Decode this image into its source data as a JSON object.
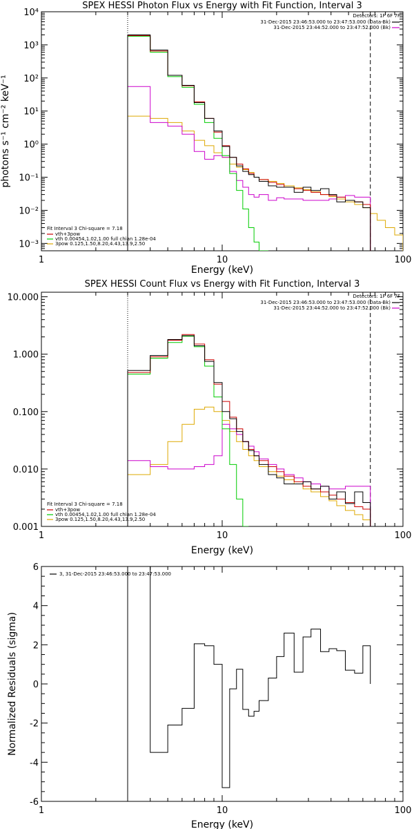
{
  "colors": {
    "data": "#000000",
    "total": "#cc0000",
    "thermal": "#00cc00",
    "power": "#dda800",
    "background": "#cc00cc"
  },
  "chart_data": [
    {
      "type": "line",
      "title": "SPEX HESSI Photon Flux vs Energy with Fit Function, Interval 3",
      "xlabel": "Energy (keV)",
      "ylabel": "photons s⁻¹ cm⁻² keV⁻¹",
      "xscale": "log",
      "yscale": "log",
      "xlim": [
        1,
        100
      ],
      "ylim": [
        0.0006,
        10000
      ],
      "xticks": [
        "1",
        "10",
        "100"
      ],
      "yticks": [
        {
          "value": 10000,
          "label": "10⁴"
        },
        {
          "value": 1000,
          "label": "10³"
        },
        {
          "value": 100,
          "label": "10²"
        },
        {
          "value": 10,
          "label": "10¹"
        },
        {
          "value": 1,
          "label": "10⁰"
        },
        {
          "value": 0.1,
          "label": "10⁻¹"
        },
        {
          "value": 0.01,
          "label": "10⁻²"
        },
        {
          "value": 0.001,
          "label": "10⁻³"
        }
      ],
      "vlines": [
        {
          "x": 3,
          "style": "dotted"
        },
        {
          "x": 66,
          "style": "dashed"
        }
      ],
      "edges": [
        3,
        4,
        5,
        6,
        7,
        8,
        9,
        10,
        11,
        12,
        13,
        14,
        15,
        16,
        18,
        20,
        22,
        25,
        28,
        31,
        35,
        39,
        43,
        48,
        54,
        60,
        66,
        72,
        80,
        90,
        100
      ],
      "series": [
        {
          "name": "Data",
          "color": "#000000",
          "values": [
            2000,
            700,
            120,
            60,
            18,
            6,
            2.5,
            0.85,
            0.4,
            0.22,
            0.15,
            0.12,
            0.1,
            0.075,
            0.055,
            0.05,
            0.05,
            0.035,
            0.05,
            0.04,
            0.045,
            0.03,
            0.018,
            0.02,
            0.018,
            0.012,
            null,
            null,
            null,
            null
          ]
        },
        {
          "name": "vth+3pow",
          "color": "#cc0000",
          "values": [
            1900,
            650,
            120,
            58,
            19,
            6,
            2.3,
            0.9,
            0.4,
            0.25,
            0.18,
            0.13,
            0.1,
            0.085,
            0.07,
            0.06,
            0.05,
            0.045,
            0.04,
            0.035,
            0.03,
            0.028,
            0.025,
            0.02,
            0.018,
            0.015,
            null,
            null,
            null,
            null
          ]
        },
        {
          "name": "vth",
          "color": "#00cc00",
          "values": [
            1800,
            600,
            110,
            52,
            16,
            4.5,
            1.5,
            0.45,
            0.13,
            0.04,
            0.011,
            0.003,
            0.0011,
            0.00045,
            null,
            null,
            null,
            null,
            null,
            null,
            null,
            null,
            null,
            null,
            null,
            null,
            null,
            null,
            null,
            null
          ]
        },
        {
          "name": "3pow",
          "color": "#dda800",
          "values": [
            7,
            6,
            4.5,
            2.5,
            1.3,
            0.9,
            0.55,
            0.4,
            0.25,
            0.2,
            0.17,
            0.14,
            0.1,
            0.085,
            0.075,
            0.065,
            0.055,
            0.048,
            0.042,
            0.036,
            0.03,
            0.026,
            0.022,
            0.018,
            0.015,
            0.012,
            0.008,
            0.005,
            0.003,
            0.0018
          ]
        },
        {
          "name": "Background",
          "color": "#cc00cc",
          "values": [
            55,
            4.5,
            3.5,
            2,
            0.6,
            0.35,
            0.45,
            0.4,
            0.15,
            0.08,
            0.05,
            0.03,
            0.025,
            0.03,
            0.02,
            0.024,
            0.022,
            0.022,
            0.02,
            0.02,
            0.02,
            0.022,
            0.025,
            0.028,
            0.025,
            0.025,
            null,
            null,
            null,
            null
          ]
        }
      ],
      "legend": {
        "placement": "bottom-left",
        "header": "Fit Interval 3   Chi-square = 7.18",
        "items": [
          {
            "color": "#cc0000",
            "label": "vth+3pow"
          },
          {
            "color": "#00cc00",
            "label": "vth 0.00454,1.02,1.00   full chian 1.28e-04"
          },
          {
            "color": "#dda800",
            "label": "3pow 0.125,1.50,8.20,4.43,13.9,2.50"
          }
        ]
      },
      "info": {
        "placement": "top-right",
        "detectors": "Detectors: 1F 6F 7F",
        "items": [
          {
            "color": "#000000",
            "label": "31-Dec-2015 23:46:53.000 to 23:47:53.000 (Data-Bk)"
          },
          {
            "color": "#cc00cc",
            "label": "31-Dec-2015 23:44:52.000 to 23:47:52.000 (Bk)"
          }
        ]
      }
    },
    {
      "type": "line",
      "title": "SPEX HESSI Count Flux vs Energy with Fit Function, Interval 3",
      "xlabel": "Energy (keV)",
      "ylabel": "",
      "xscale": "log",
      "yscale": "log",
      "xlim": [
        1,
        100
      ],
      "ylim": [
        0.001,
        12
      ],
      "xticks": [
        "1",
        "10",
        "100"
      ],
      "yticks": [
        {
          "value": 10,
          "label": "10.000"
        },
        {
          "value": 1,
          "label": "1.000"
        },
        {
          "value": 0.1,
          "label": "0.100"
        },
        {
          "value": 0.01,
          "label": "0.010"
        },
        {
          "value": 0.001,
          "label": "0.001"
        }
      ],
      "vlines": [
        {
          "x": 3,
          "style": "dotted"
        },
        {
          "x": 66,
          "style": "dashed"
        }
      ],
      "edges": [
        3,
        4,
        5,
        6,
        7,
        8,
        9,
        10,
        11,
        12,
        13,
        14,
        15,
        16,
        18,
        20,
        22,
        25,
        28,
        31,
        35,
        39,
        43,
        48,
        54,
        60,
        66
      ],
      "series": [
        {
          "name": "Data",
          "color": "#000000",
          "values": [
            0.52,
            0.95,
            1.8,
            2.1,
            1.4,
            0.75,
            0.32,
            0.1,
            0.075,
            0.045,
            0.03,
            0.021,
            0.017,
            0.012,
            0.008,
            0.007,
            0.0055,
            0.0055,
            0.006,
            0.0045,
            0.005,
            0.003,
            0.004,
            0.0025,
            0.004,
            0.0026
          ]
        },
        {
          "name": "vth+3pow",
          "color": "#cc0000",
          "values": [
            0.48,
            0.9,
            1.75,
            2.2,
            1.5,
            0.8,
            0.3,
            0.15,
            0.08,
            0.05,
            0.03,
            0.022,
            0.017,
            0.014,
            0.011,
            0.009,
            0.0075,
            0.006,
            0.005,
            0.0045,
            0.004,
            0.0035,
            0.003,
            0.0026,
            0.0022,
            0.002
          ]
        },
        {
          "name": "vth",
          "color": "#00cc00",
          "values": [
            0.45,
            0.85,
            1.6,
            2.05,
            1.35,
            0.62,
            0.18,
            0.05,
            0.012,
            0.003,
            0.0009,
            null,
            null,
            null,
            null,
            null,
            null,
            null,
            null,
            null,
            null,
            null,
            null,
            null,
            null,
            null
          ]
        },
        {
          "name": "3pow",
          "color": "#dda800",
          "values": [
            0.008,
            0.012,
            0.03,
            0.06,
            0.11,
            0.12,
            0.1,
            0.07,
            0.045,
            0.03,
            0.022,
            0.017,
            0.014,
            0.011,
            0.009,
            0.0075,
            0.0065,
            0.0055,
            0.0045,
            0.004,
            0.0033,
            0.0028,
            0.0023,
            0.0019,
            0.0016,
            0.0013
          ]
        },
        {
          "name": "Background",
          "color": "#cc00cc",
          "values": [
            0.014,
            0.011,
            0.01,
            0.01,
            0.011,
            0.012,
            0.017,
            0.06,
            0.05,
            0.04,
            0.03,
            0.025,
            0.02,
            0.015,
            0.012,
            0.01,
            0.008,
            0.007,
            0.006,
            0.0055,
            0.005,
            0.0045,
            0.0045,
            0.005,
            0.005,
            0.005
          ]
        }
      ],
      "legend": {
        "placement": "bottom-left",
        "header": "Fit Interval 3   Chi-square = 7.18",
        "items": [
          {
            "color": "#cc0000",
            "label": "vth+3pow"
          },
          {
            "color": "#00cc00",
            "label": "vth 0.00454,1.02,1.00   full chian 1.28e-04"
          },
          {
            "color": "#dda800",
            "label": "3pow 0.125,1.50,8.20,4.43,13.9,2.50"
          }
        ]
      },
      "info": {
        "placement": "top-right",
        "detectors": "Detectors: 1F 6F 7F",
        "items": [
          {
            "color": "#000000",
            "label": "31-Dec-2015 23:46:53.000 to 23:47:53.000 (Data-Bk)"
          },
          {
            "color": "#cc00cc",
            "label": "31-Dec-2015 23:44:52.000 to 23:47:52.000 (Bk)"
          }
        ]
      }
    },
    {
      "type": "line",
      "title": "",
      "xlabel": "Energy (keV)",
      "ylabel": "Normalized Residuals (sigma)",
      "xscale": "log",
      "yscale": "linear",
      "xlim": [
        1,
        100
      ],
      "ylim": [
        -6,
        6
      ],
      "xticks": [
        "1",
        "10",
        "100"
      ],
      "yticks": [
        {
          "value": 6,
          "label": "6"
        },
        {
          "value": 4,
          "label": "4"
        },
        {
          "value": 2,
          "label": "2"
        },
        {
          "value": 0,
          "label": "0"
        },
        {
          "value": -2,
          "label": "-2"
        },
        {
          "value": -4,
          "label": "-4"
        },
        {
          "value": -6,
          "label": "-6"
        }
      ],
      "vlines": [],
      "edges": [
        3,
        4,
        5,
        6,
        7,
        8,
        9,
        10,
        11,
        12,
        13,
        14,
        15,
        16,
        18,
        20,
        22,
        25,
        28,
        31,
        35,
        39,
        43,
        48,
        54,
        60,
        66
      ],
      "series": [
        {
          "name": "Residuals",
          "color": "#000000",
          "values": [
            6.5,
            -3.5,
            -2.1,
            -1.25,
            2.05,
            1.95,
            1.0,
            -5.3,
            -0.25,
            0.75,
            -1.3,
            -1.65,
            -1.4,
            -0.85,
            0.3,
            1.4,
            2.6,
            0.6,
            2.4,
            2.8,
            1.65,
            1.8,
            1.7,
            0.7,
            0.55,
            1.95
          ]
        }
      ],
      "info": {
        "placement": "top-left",
        "items": [
          {
            "color": "#000000",
            "label": "3, 31-Dec-2015 23:46:53.000 to 23:47:53.000"
          }
        ]
      }
    }
  ]
}
